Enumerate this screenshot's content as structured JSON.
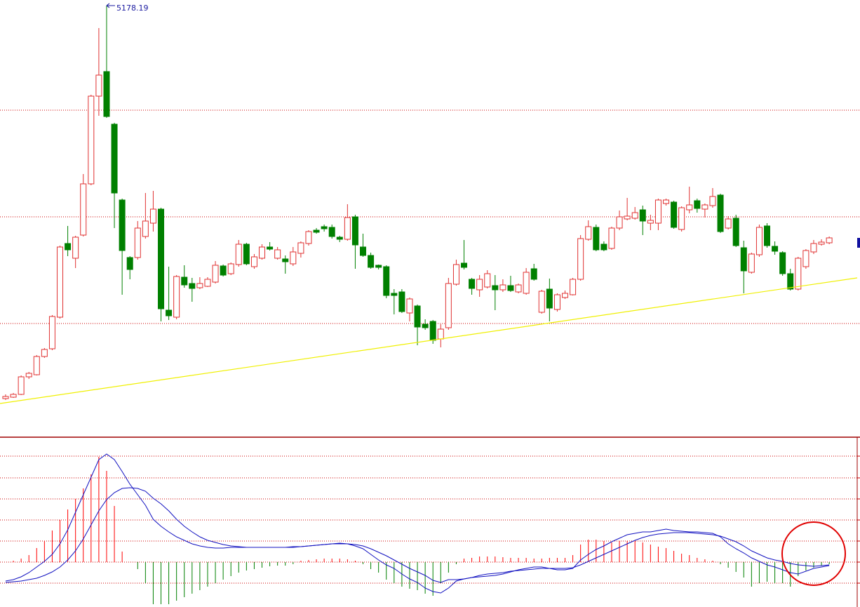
{
  "chart_data": [
    {
      "type": "candlestick",
      "xlim": [
        -0.72,
        109.6
      ],
      "ylim": [
        2108,
        5218
      ],
      "grid_lines": [
        4433,
        3673,
        2913
      ],
      "grid_color": "#cc0000",
      "up_color": "#e03030",
      "down_color": "#008000",
      "open": [
        2378,
        2388,
        2408,
        2533,
        2548,
        2678,
        2733,
        2958,
        3483,
        3378,
        3543,
        3908,
        4533,
        4708,
        4333,
        3793,
        3383,
        3383,
        3533,
        3628,
        3728,
        3008,
        2958,
        3243,
        3198,
        3168,
        3178,
        3208,
        3323,
        3268,
        3333,
        3478,
        3318,
        3378,
        3458,
        3378,
        3373,
        3338,
        3413,
        3483,
        3578,
        3603,
        3598,
        3528,
        3513,
        3673,
        3458,
        3398,
        3328,
        3318,
        3128,
        3138,
        2988,
        3038,
        2908,
        2928,
        2803,
        2883,
        3193,
        3343,
        3228,
        3153,
        3173,
        3183,
        3153,
        3183,
        3138,
        3128,
        3303,
        2993,
        3158,
        3013,
        3098,
        3118,
        3228,
        3513,
        3598,
        3478,
        3448,
        3593,
        3658,
        3663,
        3723,
        3628,
        3628,
        3768,
        3778,
        3583,
        3723,
        3788,
        3728,
        3753,
        3828,
        3593,
        3663,
        3453,
        3278,
        3403,
        3608,
        3463,
        3418,
        3268,
        3158,
        3318,
        3423,
        3478,
        3488
      ],
      "high": [
        2408,
        2418,
        2543,
        2568,
        2688,
        2738,
        2973,
        3468,
        3608,
        3538,
        3978,
        4543,
        5018,
        5178.19,
        4343,
        3803,
        3393,
        3643,
        3843,
        3858,
        3738,
        3318,
        3258,
        3328,
        3238,
        3243,
        3243,
        3358,
        3333,
        3348,
        3508,
        3488,
        3408,
        3478,
        3493,
        3458,
        3398,
        3458,
        3498,
        3578,
        3593,
        3618,
        3618,
        3538,
        3763,
        3688,
        3553,
        3418,
        3333,
        3328,
        3158,
        3158,
        3098,
        3048,
        2943,
        2938,
        2908,
        3238,
        3368,
        3508,
        3238,
        3258,
        3293,
        3258,
        3228,
        3253,
        3198,
        3308,
        3338,
        3153,
        3233,
        3128,
        3148,
        3238,
        3543,
        3648,
        3618,
        3498,
        3603,
        3718,
        3808,
        3743,
        3753,
        3688,
        3803,
        3803,
        3788,
        3748,
        3888,
        3803,
        3768,
        3878,
        3838,
        3678,
        3688,
        3503,
        3418,
        3618,
        3628,
        3498,
        3428,
        3303,
        3388,
        3443,
        3508,
        3513,
        3533
      ],
      "low": [
        2368,
        2383,
        2403,
        2518,
        2543,
        2668,
        2723,
        2948,
        3393,
        3308,
        3533,
        3898,
        4393,
        4378,
        3593,
        3118,
        3228,
        3368,
        3518,
        3568,
        2928,
        2938,
        2943,
        3168,
        3068,
        3158,
        3173,
        3198,
        3248,
        3258,
        3318,
        3328,
        3303,
        3368,
        3433,
        3368,
        3268,
        3323,
        3383,
        3468,
        3553,
        3568,
        3518,
        3493,
        3503,
        3303,
        3388,
        3303,
        3298,
        3093,
        2978,
        2988,
        2928,
        2758,
        2868,
        2768,
        2743,
        2868,
        3183,
        3298,
        3118,
        3103,
        3163,
        3008,
        3138,
        3138,
        3128,
        3118,
        3218,
        2983,
        2928,
        2998,
        3088,
        3113,
        3218,
        3503,
        3428,
        3428,
        3438,
        3578,
        3648,
        3653,
        3543,
        3578,
        3578,
        3753,
        3588,
        3568,
        3698,
        3703,
        3668,
        3738,
        3558,
        3583,
        3458,
        3128,
        3268,
        3388,
        3453,
        3403,
        3253,
        3148,
        3148,
        3303,
        3408,
        3468,
        3478
      ],
      "close": [
        2393,
        2408,
        2533,
        2558,
        2678,
        2728,
        2963,
        3458,
        3438,
        3528,
        3908,
        4533,
        4683,
        4388,
        3843,
        3433,
        3298,
        3593,
        3643,
        3728,
        3018,
        2968,
        3248,
        3188,
        3163,
        3198,
        3228,
        3328,
        3258,
        3338,
        3478,
        3338,
        3388,
        3458,
        3443,
        3438,
        3353,
        3423,
        3488,
        3568,
        3563,
        3588,
        3533,
        3513,
        3668,
        3473,
        3398,
        3313,
        3313,
        3113,
        3113,
        2998,
        3088,
        2888,
        2883,
        2793,
        2873,
        3198,
        3333,
        3313,
        3163,
        3228,
        3268,
        3153,
        3188,
        3148,
        3188,
        3278,
        3228,
        3143,
        3023,
        3118,
        3128,
        3228,
        3518,
        3603,
        3438,
        3438,
        3593,
        3673,
        3678,
        3703,
        3643,
        3648,
        3793,
        3793,
        3598,
        3738,
        3758,
        3733,
        3758,
        3818,
        3568,
        3658,
        3468,
        3288,
        3408,
        3598,
        3468,
        3428,
        3268,
        3158,
        3378,
        3433,
        3483,
        3493,
        3523
      ],
      "trendline": {
        "x": [
          -0.72,
          109.6
        ],
        "y": [
          2343,
          3238
        ],
        "color": "#f0f000"
      },
      "label_color": "#1a1aa0"
    },
    {
      "type": "macd",
      "xlim": [
        -0.72,
        109.6
      ],
      "ylim": [
        -64,
        179
      ],
      "grid_lines": [
        151,
        120,
        90,
        60,
        30,
        0,
        -30
      ],
      "grid_color": "#cc0000",
      "line_color": "#1010c0",
      "up_color": "#ff0000",
      "down_color": "#008000",
      "histogram": [
        0,
        2,
        5,
        10,
        20,
        30,
        45,
        60,
        75,
        90,
        105,
        125,
        150,
        130,
        80,
        15,
        0,
        -10,
        -30,
        -60,
        -60,
        -60,
        -55,
        -50,
        -45,
        -40,
        -35,
        -30,
        -25,
        -20,
        -15,
        -12,
        -10,
        -8,
        -6,
        -5,
        -5,
        -3,
        2,
        3,
        4,
        5,
        5,
        5,
        4,
        2,
        -3,
        -10,
        -15,
        -25,
        -30,
        -35,
        -38,
        -40,
        -45,
        -48,
        -30,
        -15,
        -3,
        5,
        6,
        8,
        8,
        8,
        7,
        6,
        6,
        6,
        5,
        5,
        6,
        6,
        6,
        10,
        25,
        32,
        32,
        30,
        28,
        30,
        30,
        30,
        28,
        25,
        22,
        20,
        16,
        12,
        10,
        6,
        4,
        2,
        -3,
        -8,
        -14,
        -22,
        -35,
        -30,
        -28,
        -30,
        -30,
        -35,
        -20,
        -12,
        -8,
        -5,
        -3
      ],
      "dif": [
        -27,
        -25,
        -21,
        -15,
        -7,
        1,
        11,
        26,
        46,
        71,
        96,
        121,
        146,
        154,
        146,
        129,
        111,
        96,
        81,
        61,
        51,
        43,
        36,
        31,
        26,
        23,
        21,
        20,
        20,
        21,
        21,
        21,
        21,
        21,
        21,
        21,
        21,
        22,
        22,
        23,
        24,
        25,
        26,
        27,
        26,
        23,
        19,
        11,
        3,
        -4,
        -9,
        -17,
        -24,
        -29,
        -37,
        -42,
        -44,
        -37,
        -27,
        -24,
        -22,
        -21,
        -20,
        -19,
        -17,
        -14,
        -11,
        -9,
        -7,
        -7,
        -9,
        -11,
        -11,
        -9,
        3,
        11,
        18,
        23,
        29,
        34,
        39,
        41,
        43,
        43,
        45,
        47,
        45,
        44,
        43,
        43,
        42,
        41,
        36,
        26,
        19,
        13,
        6,
        1,
        -4,
        -7,
        -11,
        -15,
        -17,
        -13,
        -9,
        -7,
        -5
      ],
      "dea": [
        -29,
        -28,
        -27,
        -25,
        -23,
        -19,
        -14,
        -7,
        3,
        16,
        33,
        53,
        73,
        89,
        99,
        105,
        106,
        105,
        101,
        91,
        83,
        73,
        61,
        51,
        43,
        36,
        31,
        28,
        25,
        23,
        22,
        21,
        21,
        21,
        21,
        21,
        21,
        21,
        22,
        23,
        24,
        25,
        26,
        26,
        26,
        25,
        23,
        19,
        14,
        9,
        3,
        -3,
        -9,
        -14,
        -19,
        -26,
        -29,
        -25,
        -25,
        -24,
        -22,
        -19,
        -17,
        -16,
        -15,
        -13,
        -12,
        -11,
        -10,
        -9,
        -9,
        -9,
        -9,
        -8,
        -4,
        1,
        6,
        11,
        16,
        21,
        26,
        31,
        35,
        38,
        40,
        41,
        42,
        42,
        42,
        41,
        40,
        39,
        37,
        33,
        29,
        23,
        16,
        11,
        6,
        3,
        1,
        -2,
        -4,
        -5,
        -6,
        -5,
        -4
      ]
    }
  ]
}
